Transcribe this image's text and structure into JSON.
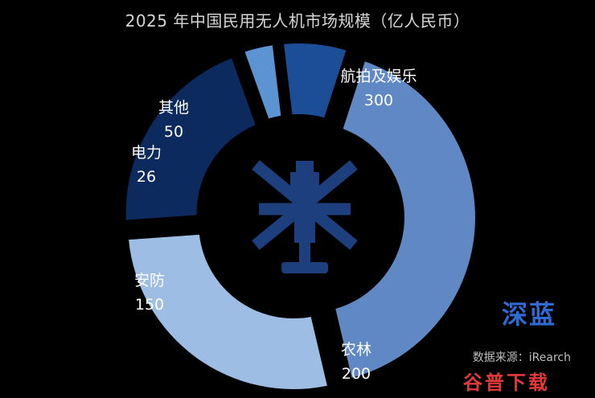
{
  "title": "2025 年中国民用无人机市场规模（亿人民币）",
  "watermark": "深蓝",
  "source": "数据来源：iRearch",
  "site_logo": "谷普下载",
  "center_icon": "drone-icon",
  "colors": {
    "background": "#000000",
    "aerial": "#6088c4",
    "agri": "#9dbde4",
    "security": "#0c2a5e",
    "power": "#5b93d3",
    "other": "#1c4d97",
    "drone": "#1e3f7e"
  },
  "chart_data": {
    "type": "pie",
    "style": "donut",
    "title": "2025 年中国民用无人机市场规模（亿人民币）",
    "unit": "亿人民币",
    "slices": [
      {
        "label": "航拍及娱乐",
        "value": 300,
        "color": "#6088c4"
      },
      {
        "label": "农林",
        "value": 200,
        "color": "#9dbde4"
      },
      {
        "label": "安防",
        "value": 150,
        "color": "#0c2a5e"
      },
      {
        "label": "电力",
        "value": 26,
        "color": "#5b93d3"
      },
      {
        "label": "其他",
        "value": 50,
        "color": "#1c4d97"
      }
    ]
  }
}
